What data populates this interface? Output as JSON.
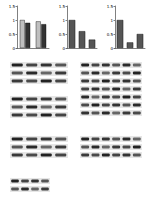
{
  "chart_data": [
    {
      "type": "bar",
      "categories": [
        null,
        null
      ],
      "series": [
        {
          "color": "#bfbfbf",
          "values": [
            1.0,
            0.95
          ]
        },
        {
          "color": "#333333",
          "values": [
            0.9,
            0.85
          ]
        }
      ],
      "ylim": [
        0,
        1.5
      ],
      "yticks": [
        0,
        0.5,
        1,
        1.5
      ]
    },
    {
      "type": "bar",
      "categories": [
        null,
        null,
        null
      ],
      "series": [
        {
          "color": "#555555",
          "values": [
            1.0,
            0.6,
            0.3
          ]
        }
      ],
      "ylim": [
        0,
        1.5
      ],
      "yticks": [
        0,
        0.5,
        1,
        1.5
      ]
    },
    {
      "type": "bar",
      "categories": [
        null,
        null,
        null
      ],
      "series": [
        {
          "color": "#555555",
          "values": [
            1.0,
            0.2,
            0.5
          ]
        }
      ],
      "ylim": [
        0,
        1.5
      ],
      "yticks": [
        0,
        0.5,
        1,
        1.5
      ]
    }
  ]
}
